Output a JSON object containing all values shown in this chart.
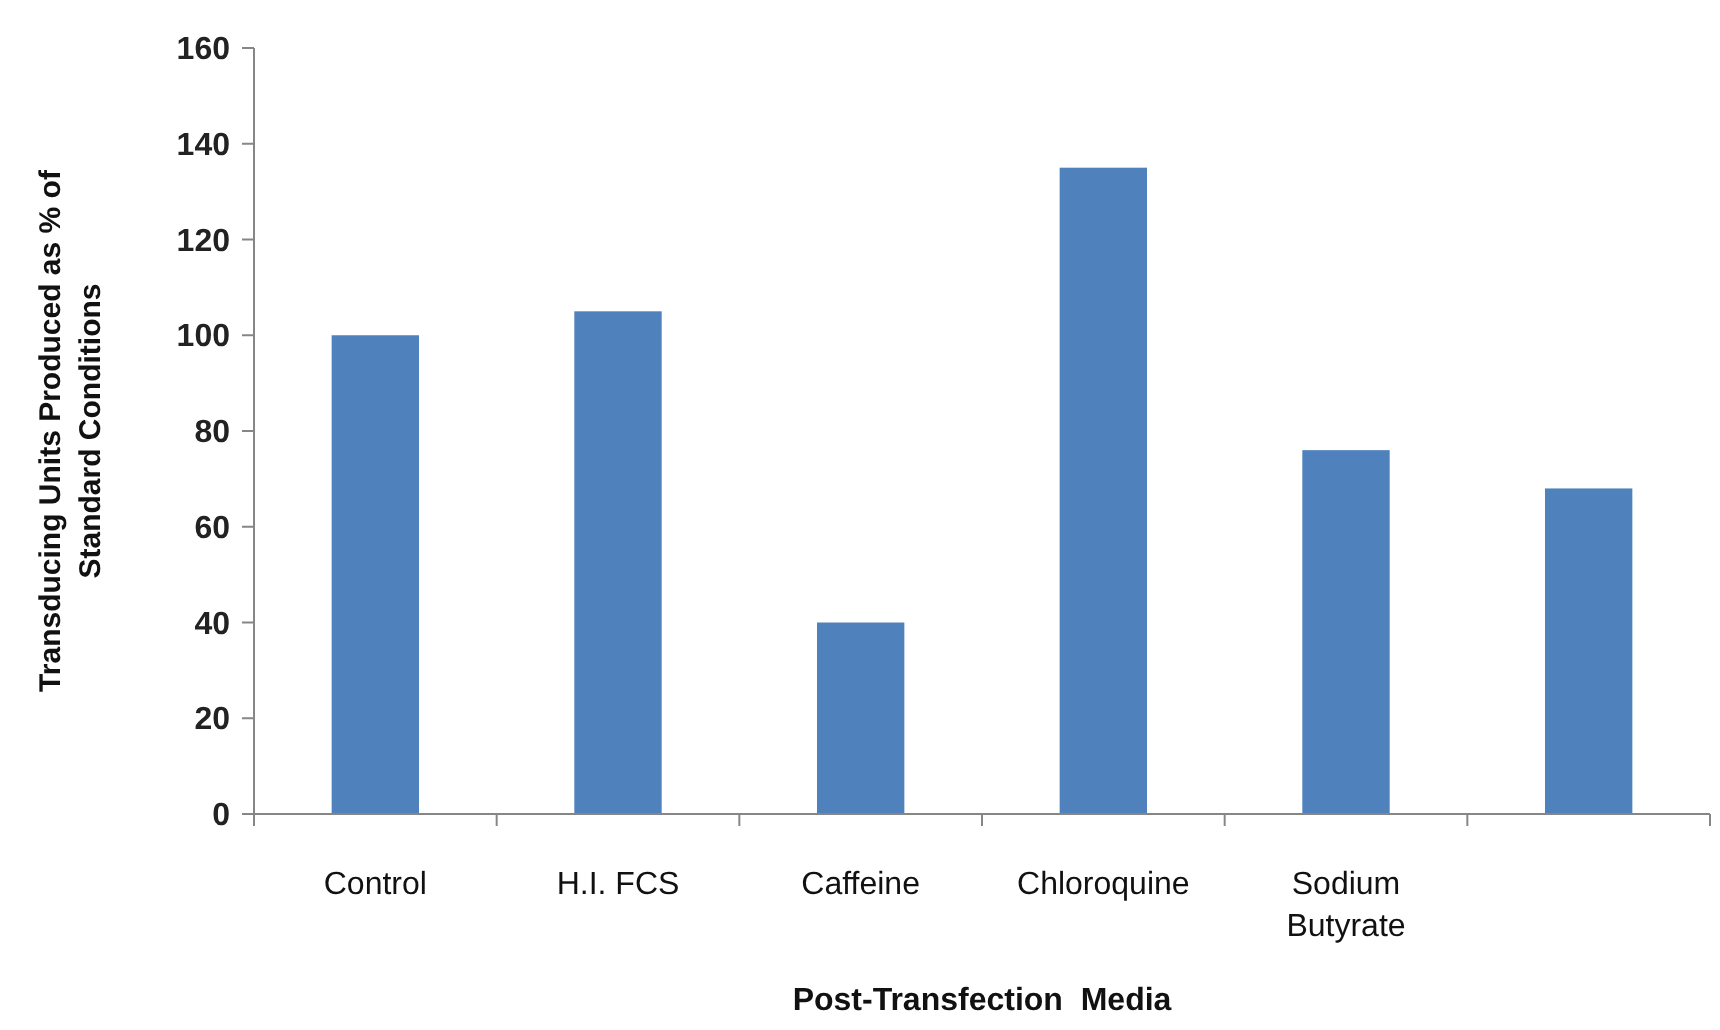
{
  "chart_data": {
    "type": "bar",
    "xlabel": "Post-Transfection  Media",
    "ylabel": "Transducing Units Produced as % of Standard Conditions",
    "categories": [
      "Control",
      "H.I. FCS",
      "Caffeine",
      "Chloroquine",
      "Sodium Butyrate",
      null
    ],
    "values": [
      100,
      105,
      40,
      135,
      76,
      68
    ],
    "color": "#4f81bd",
    "ylim": [
      0,
      160
    ],
    "yticks": [
      0,
      20,
      40,
      60,
      80,
      100,
      120,
      140,
      160
    ],
    "grid": false
  }
}
